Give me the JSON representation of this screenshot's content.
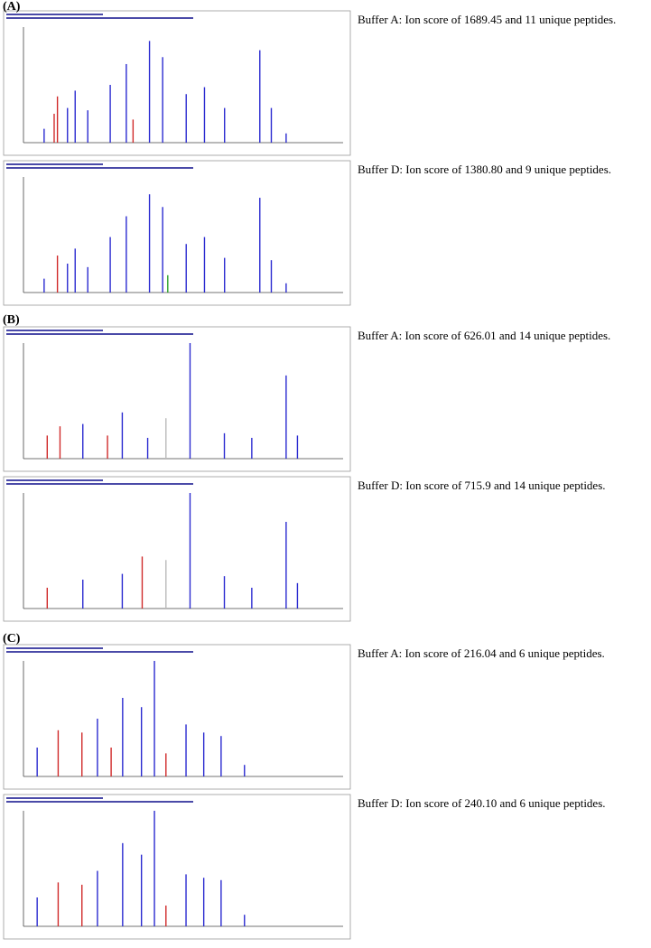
{
  "xlim": [
    100,
    1850
  ],
  "ylim": [
    0,
    100
  ],
  "panels": [
    {
      "label": "(A)",
      "spectra": [
        {
          "caption": "Buffer A: Ion score of 1689.45 and 11 unique peptides.",
          "peaks": [
            {
              "mz": 213,
              "intensity": 12,
              "color": "#2a2ad0"
            },
            {
              "mz": 268,
              "intensity": 25,
              "color": "#d02a2a"
            },
            {
              "mz": 286,
              "intensity": 40,
              "color": "#d02a2a"
            },
            {
              "mz": 341,
              "intensity": 30,
              "color": "#2a2ad0"
            },
            {
              "mz": 383,
              "intensity": 45,
              "color": "#2a2ad0"
            },
            {
              "mz": 452,
              "intensity": 28,
              "color": "#2a2ad0"
            },
            {
              "mz": 575,
              "intensity": 50,
              "color": "#2a2ad0"
            },
            {
              "mz": 663,
              "intensity": 68,
              "color": "#2a2ad0"
            },
            {
              "mz": 700,
              "intensity": 20,
              "color": "#d02a2a"
            },
            {
              "mz": 790,
              "intensity": 88,
              "color": "#2a2ad0"
            },
            {
              "mz": 862,
              "intensity": 74,
              "color": "#2a2ad0"
            },
            {
              "mz": 991,
              "intensity": 42,
              "color": "#2a2ad0"
            },
            {
              "mz": 1091,
              "intensity": 48,
              "color": "#2a2ad0"
            },
            {
              "mz": 1201,
              "intensity": 30,
              "color": "#2a2ad0"
            },
            {
              "mz": 1394,
              "intensity": 80,
              "color": "#2a2ad0"
            },
            {
              "mz": 1457,
              "intensity": 30,
              "color": "#2a2ad0"
            },
            {
              "mz": 1538,
              "intensity": 8,
              "color": "#2a2ad0"
            }
          ]
        },
        {
          "caption": "Buffer D: Ion score of 1380.80 and 9 unique peptides.",
          "peaks": [
            {
              "mz": 213,
              "intensity": 12,
              "color": "#2a2ad0"
            },
            {
              "mz": 286,
              "intensity": 32,
              "color": "#d02a2a"
            },
            {
              "mz": 341,
              "intensity": 25,
              "color": "#2a2ad0"
            },
            {
              "mz": 383,
              "intensity": 38,
              "color": "#2a2ad0"
            },
            {
              "mz": 452,
              "intensity": 22,
              "color": "#2a2ad0"
            },
            {
              "mz": 575,
              "intensity": 48,
              "color": "#2a2ad0"
            },
            {
              "mz": 663,
              "intensity": 66,
              "color": "#2a2ad0"
            },
            {
              "mz": 790,
              "intensity": 85,
              "color": "#2a2ad0"
            },
            {
              "mz": 862,
              "intensity": 74,
              "color": "#2a2ad0"
            },
            {
              "mz": 890,
              "intensity": 15,
              "color": "#2aa02a"
            },
            {
              "mz": 991,
              "intensity": 42,
              "color": "#2a2ad0"
            },
            {
              "mz": 1091,
              "intensity": 48,
              "color": "#2a2ad0"
            },
            {
              "mz": 1201,
              "intensity": 30,
              "color": "#2a2ad0"
            },
            {
              "mz": 1394,
              "intensity": 82,
              "color": "#2a2ad0"
            },
            {
              "mz": 1457,
              "intensity": 28,
              "color": "#2a2ad0"
            },
            {
              "mz": 1538,
              "intensity": 8,
              "color": "#2a2ad0"
            }
          ]
        }
      ]
    },
    {
      "label": "(B)",
      "spectra": [
        {
          "caption": "Buffer A: Ion score of 626.01 and 14 unique peptides.",
          "peaks": [
            {
              "mz": 230,
              "intensity": 20,
              "color": "#d02a2a"
            },
            {
              "mz": 300,
              "intensity": 28,
              "color": "#d02a2a"
            },
            {
              "mz": 425,
              "intensity": 30,
              "color": "#2a2ad0"
            },
            {
              "mz": 560,
              "intensity": 20,
              "color": "#d02a2a"
            },
            {
              "mz": 641,
              "intensity": 40,
              "color": "#2a2ad0"
            },
            {
              "mz": 780,
              "intensity": 18,
              "color": "#2a2ad0"
            },
            {
              "mz": 880,
              "intensity": 35,
              "color": "#bbbbbb"
            },
            {
              "mz": 1012,
              "intensity": 100,
              "color": "#2a2ad0"
            },
            {
              "mz": 1200,
              "intensity": 22,
              "color": "#2a2ad0"
            },
            {
              "mz": 1350,
              "intensity": 18,
              "color": "#2a2ad0"
            },
            {
              "mz": 1538,
              "intensity": 72,
              "color": "#2a2ad0"
            },
            {
              "mz": 1600,
              "intensity": 20,
              "color": "#2a2ad0"
            }
          ]
        },
        {
          "caption": "Buffer D: Ion score of 715.9 and 14 unique peptides.",
          "peaks": [
            {
              "mz": 230,
              "intensity": 18,
              "color": "#d02a2a"
            },
            {
              "mz": 425,
              "intensity": 25,
              "color": "#2a2ad0"
            },
            {
              "mz": 641,
              "intensity": 30,
              "color": "#2a2ad0"
            },
            {
              "mz": 750,
              "intensity": 45,
              "color": "#d02a2a"
            },
            {
              "mz": 880,
              "intensity": 42,
              "color": "#bbbbbb"
            },
            {
              "mz": 1012,
              "intensity": 100,
              "color": "#2a2ad0"
            },
            {
              "mz": 1200,
              "intensity": 28,
              "color": "#2a2ad0"
            },
            {
              "mz": 1350,
              "intensity": 18,
              "color": "#2a2ad0"
            },
            {
              "mz": 1538,
              "intensity": 75,
              "color": "#2a2ad0"
            },
            {
              "mz": 1600,
              "intensity": 22,
              "color": "#2a2ad0"
            }
          ]
        }
      ]
    },
    {
      "label": "(C)",
      "spectra": [
        {
          "caption": "Buffer A: Ion score of 216.04 and 6 unique peptides.",
          "peaks": [
            {
              "mz": 175,
              "intensity": 25,
              "color": "#2a2ad0"
            },
            {
              "mz": 290,
              "intensity": 40,
              "color": "#d02a2a"
            },
            {
              "mz": 420,
              "intensity": 38,
              "color": "#d02a2a"
            },
            {
              "mz": 505,
              "intensity": 50,
              "color": "#2a2ad0"
            },
            {
              "mz": 580,
              "intensity": 25,
              "color": "#d02a2a"
            },
            {
              "mz": 643,
              "intensity": 68,
              "color": "#2a2ad0"
            },
            {
              "mz": 746,
              "intensity": 60,
              "color": "#2a2ad0"
            },
            {
              "mz": 817,
              "intensity": 100,
              "color": "#2a2ad0"
            },
            {
              "mz": 880,
              "intensity": 20,
              "color": "#d02a2a"
            },
            {
              "mz": 990,
              "intensity": 45,
              "color": "#2a2ad0"
            },
            {
              "mz": 1087,
              "intensity": 38,
              "color": "#2a2ad0"
            },
            {
              "mz": 1182,
              "intensity": 35,
              "color": "#2a2ad0"
            },
            {
              "mz": 1310,
              "intensity": 10,
              "color": "#2a2ad0"
            }
          ]
        },
        {
          "caption": "Buffer D: Ion score of 240.10 and 6 unique peptides.",
          "peaks": [
            {
              "mz": 175,
              "intensity": 25,
              "color": "#2a2ad0"
            },
            {
              "mz": 290,
              "intensity": 38,
              "color": "#d02a2a"
            },
            {
              "mz": 420,
              "intensity": 36,
              "color": "#d02a2a"
            },
            {
              "mz": 505,
              "intensity": 48,
              "color": "#2a2ad0"
            },
            {
              "mz": 643,
              "intensity": 72,
              "color": "#2a2ad0"
            },
            {
              "mz": 746,
              "intensity": 62,
              "color": "#2a2ad0"
            },
            {
              "mz": 817,
              "intensity": 100,
              "color": "#2a2ad0"
            },
            {
              "mz": 880,
              "intensity": 18,
              "color": "#d02a2a"
            },
            {
              "mz": 990,
              "intensity": 45,
              "color": "#2a2ad0"
            },
            {
              "mz": 1087,
              "intensity": 42,
              "color": "#2a2ad0"
            },
            {
              "mz": 1182,
              "intensity": 40,
              "color": "#2a2ad0"
            },
            {
              "mz": 1310,
              "intensity": 10,
              "color": "#2a2ad0"
            }
          ]
        }
      ]
    }
  ]
}
